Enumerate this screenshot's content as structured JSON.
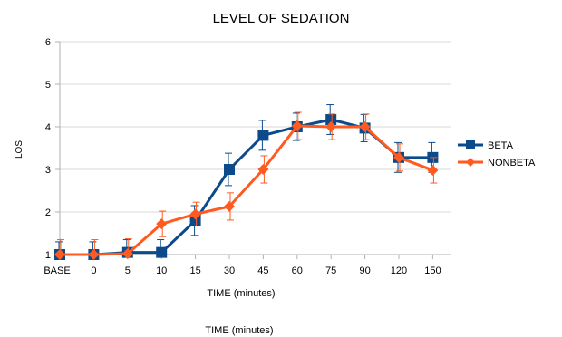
{
  "chart_data": {
    "type": "line",
    "title": "LEVEL OF SEDATION",
    "xlabel": "TIME (minutes)",
    "ylabel": "LOS",
    "caption": "TIME (minutes)",
    "categories": [
      "BASE",
      "0",
      "5",
      "10",
      "15",
      "30",
      "45",
      "60",
      "75",
      "90",
      "120",
      "150"
    ],
    "ylim": [
      1,
      6
    ],
    "yticks": [
      1,
      2,
      3,
      4,
      5,
      6
    ],
    "grid": true,
    "legend_position": "right",
    "series": [
      {
        "name": "BETA",
        "color": "#0b4a8b",
        "marker": "square",
        "values": [
          1.0,
          1.0,
          1.05,
          1.05,
          1.8,
          3.0,
          3.8,
          4.0,
          4.17,
          3.97,
          3.28,
          3.28
        ],
        "error": [
          0.3,
          0.3,
          0.3,
          0.3,
          0.35,
          0.38,
          0.35,
          0.32,
          0.35,
          0.32,
          0.35,
          0.35
        ]
      },
      {
        "name": "NONBETA",
        "color": "#ff5a1f",
        "marker": "diamond",
        "values": [
          1.0,
          1.0,
          1.02,
          1.72,
          1.95,
          2.13,
          3.0,
          4.02,
          4.0,
          4.0,
          3.28,
          2.98
        ],
        "error": [
          0.35,
          0.35,
          0.35,
          0.3,
          0.28,
          0.32,
          0.32,
          0.32,
          0.3,
          0.3,
          0.32,
          0.3
        ]
      }
    ]
  }
}
